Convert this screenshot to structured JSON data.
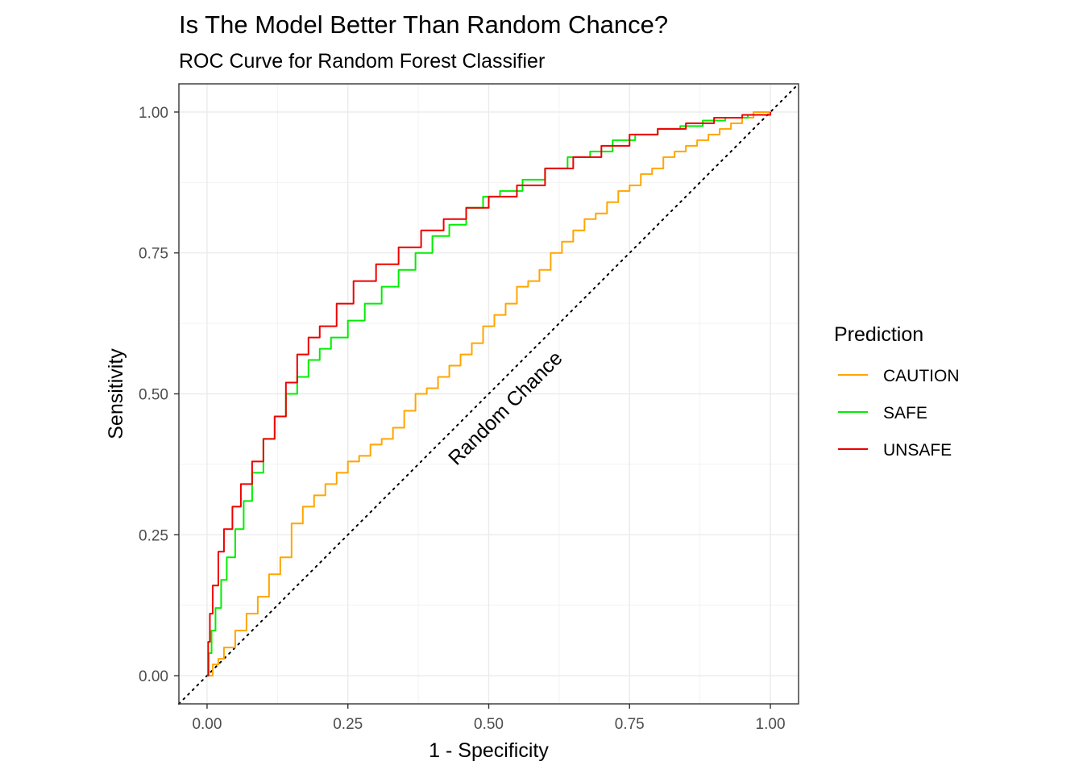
{
  "chart_data": {
    "type": "line",
    "title": "Is The Model Better Than Random Chance?",
    "subtitle": "ROC Curve for Random Forest Classifier",
    "xlabel": "1 - Specificity",
    "ylabel": "Sensitivity",
    "xlim": [
      -0.05,
      1.05
    ],
    "ylim": [
      -0.05,
      1.05
    ],
    "x_ticks": [
      0,
      0.25,
      0.5,
      0.75,
      1
    ],
    "x_tick_labels": [
      "0.00",
      "0.25",
      "0.50",
      "0.75",
      "1.00"
    ],
    "y_ticks": [
      0,
      0.25,
      0.5,
      0.75,
      1
    ],
    "y_tick_labels": [
      "0.00",
      "0.25",
      "0.50",
      "0.75",
      "1.00"
    ],
    "grid": true,
    "legend": {
      "title": "Prediction",
      "placement": "right"
    },
    "reference_line": {
      "label": "Random Chance",
      "from": [
        -0.05,
        -0.05
      ],
      "to": [
        1.05,
        1.05
      ],
      "style": "dotted"
    },
    "series": [
      {
        "name": "CAUTION",
        "color": "#FFA500",
        "x": [
          0,
          0.01,
          0.02,
          0.03,
          0.05,
          0.07,
          0.09,
          0.11,
          0.13,
          0.15,
          0.17,
          0.19,
          0.21,
          0.23,
          0.25,
          0.27,
          0.29,
          0.31,
          0.33,
          0.35,
          0.37,
          0.39,
          0.41,
          0.43,
          0.45,
          0.47,
          0.49,
          0.51,
          0.53,
          0.55,
          0.57,
          0.59,
          0.61,
          0.63,
          0.65,
          0.67,
          0.69,
          0.71,
          0.73,
          0.75,
          0.77,
          0.79,
          0.81,
          0.83,
          0.85,
          0.87,
          0.89,
          0.91,
          0.93,
          0.95,
          0.97,
          1.0
        ],
        "y": [
          0,
          0.02,
          0.03,
          0.05,
          0.08,
          0.11,
          0.14,
          0.18,
          0.21,
          0.27,
          0.3,
          0.32,
          0.34,
          0.36,
          0.38,
          0.39,
          0.41,
          0.42,
          0.44,
          0.47,
          0.5,
          0.51,
          0.53,
          0.55,
          0.57,
          0.59,
          0.62,
          0.64,
          0.66,
          0.69,
          0.7,
          0.72,
          0.75,
          0.77,
          0.79,
          0.81,
          0.82,
          0.84,
          0.86,
          0.87,
          0.89,
          0.9,
          0.92,
          0.93,
          0.94,
          0.95,
          0.96,
          0.97,
          0.98,
          0.99,
          1.0,
          1.0
        ]
      },
      {
        "name": "SAFE",
        "color": "#00EE00",
        "x": [
          0,
          0.003,
          0.008,
          0.015,
          0.025,
          0.035,
          0.05,
          0.065,
          0.08,
          0.1,
          0.12,
          0.14,
          0.16,
          0.18,
          0.2,
          0.22,
          0.25,
          0.28,
          0.31,
          0.34,
          0.37,
          0.4,
          0.43,
          0.46,
          0.49,
          0.52,
          0.56,
          0.6,
          0.64,
          0.68,
          0.72,
          0.76,
          0.8,
          0.84,
          0.88,
          0.92,
          0.96,
          1.0
        ],
        "y": [
          0,
          0.04,
          0.08,
          0.12,
          0.17,
          0.21,
          0.26,
          0.31,
          0.36,
          0.42,
          0.46,
          0.5,
          0.53,
          0.56,
          0.58,
          0.6,
          0.63,
          0.66,
          0.69,
          0.72,
          0.75,
          0.78,
          0.8,
          0.83,
          0.85,
          0.86,
          0.88,
          0.9,
          0.92,
          0.93,
          0.95,
          0.96,
          0.97,
          0.975,
          0.985,
          0.99,
          0.995,
          1.0
        ]
      },
      {
        "name": "UNSAFE",
        "color": "#EE0000",
        "x": [
          0,
          0.002,
          0.005,
          0.01,
          0.02,
          0.03,
          0.045,
          0.06,
          0.08,
          0.1,
          0.12,
          0.14,
          0.16,
          0.18,
          0.2,
          0.23,
          0.26,
          0.3,
          0.34,
          0.38,
          0.42,
          0.46,
          0.5,
          0.55,
          0.6,
          0.65,
          0.7,
          0.75,
          0.8,
          0.85,
          0.9,
          0.95,
          1.0
        ],
        "y": [
          0,
          0.06,
          0.11,
          0.16,
          0.22,
          0.26,
          0.3,
          0.34,
          0.38,
          0.42,
          0.46,
          0.52,
          0.57,
          0.6,
          0.62,
          0.66,
          0.7,
          0.73,
          0.76,
          0.79,
          0.81,
          0.83,
          0.85,
          0.87,
          0.9,
          0.92,
          0.94,
          0.96,
          0.97,
          0.98,
          0.99,
          0.995,
          1.0
        ]
      }
    ]
  }
}
